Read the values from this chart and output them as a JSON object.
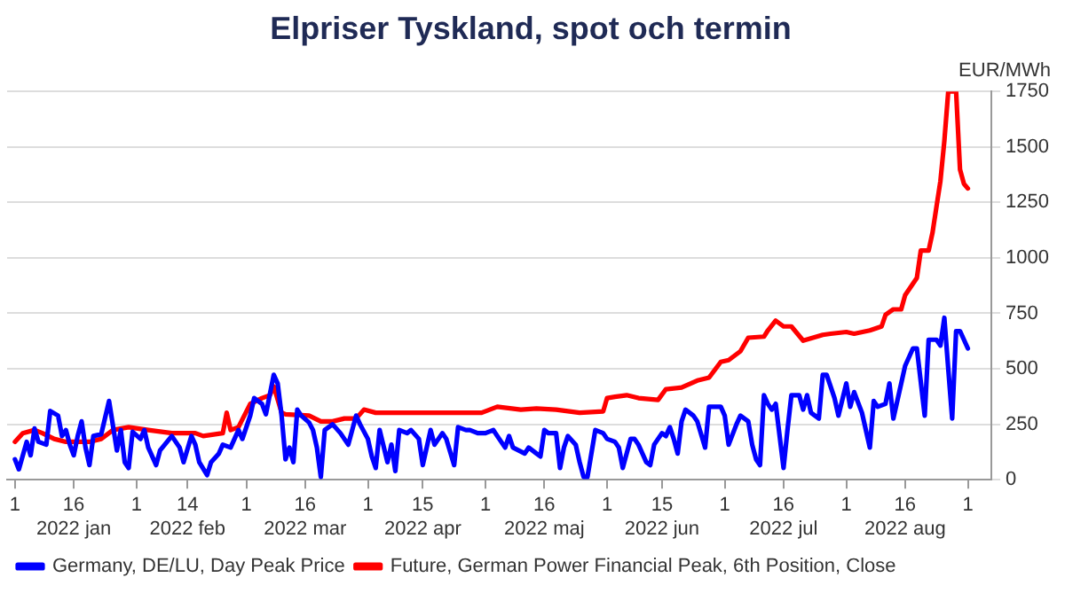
{
  "chart_data": {
    "type": "line",
    "title": "Elpriser Tyskland, spot och termin",
    "ylabel": "EUR/MWh",
    "xlim": [
      "2021-12-30",
      "2022-09-07"
    ],
    "xticks": [
      {
        "value": "2022-01-01",
        "label": "1"
      },
      {
        "value": "2022-01-16",
        "label": "16\n2022 jan"
      },
      {
        "value": "2022-02-01",
        "label": "1"
      },
      {
        "value": "2022-02-14",
        "label": "14\n2022 feb"
      },
      {
        "value": "2022-03-01",
        "label": "1"
      },
      {
        "value": "2022-03-16",
        "label": "16\n2022 mar"
      },
      {
        "value": "2022-04-01",
        "label": "1"
      },
      {
        "value": "2022-04-15",
        "label": "15\n2022 apr"
      },
      {
        "value": "2022-05-01",
        "label": "1"
      },
      {
        "value": "2022-05-16",
        "label": "16\n2022 maj"
      },
      {
        "value": "2022-06-01",
        "label": "1"
      },
      {
        "value": "2022-06-15",
        "label": "15\n2022 jun"
      },
      {
        "value": "2022-07-01",
        "label": "1"
      },
      {
        "value": "2022-07-16",
        "label": "16\n2022 jul"
      },
      {
        "value": "2022-08-01",
        "label": "1"
      },
      {
        "value": "2022-08-16",
        "label": "16\n2022 aug"
      },
      {
        "value": "2022-09-01",
        "label": "1"
      }
    ],
    "ylim": [
      0,
      1750
    ],
    "yticks": [
      0,
      250,
      500,
      750,
      1000,
      1250,
      1500,
      1750
    ],
    "grid": "y",
    "legend": "bottom",
    "marker": "none",
    "line_style": "solid",
    "series": [
      {
        "name": "Germany, DE/LU, Day Peak Price",
        "color": "#0000ff",
        "x": [
          "2022-01-01",
          "2022-01-02",
          "2022-01-04",
          "2022-01-05",
          "2022-01-06",
          "2022-01-07",
          "2022-01-09",
          "2022-01-10",
          "2022-01-12",
          "2022-01-13",
          "2022-01-14",
          "2022-01-15",
          "2022-01-16",
          "2022-01-17",
          "2022-01-18",
          "2022-01-19",
          "2022-01-20",
          "2022-01-21",
          "2022-01-23",
          "2022-01-25",
          "2022-01-27",
          "2022-01-28",
          "2022-01-29",
          "2022-01-30",
          "2022-01-31",
          "2022-02-02",
          "2022-02-03",
          "2022-02-04",
          "2022-02-06",
          "2022-02-07",
          "2022-02-10",
          "2022-02-12",
          "2022-02-13",
          "2022-02-15",
          "2022-02-16",
          "2022-02-17",
          "2022-02-19",
          "2022-02-20",
          "2022-02-22",
          "2022-02-23",
          "2022-02-25",
          "2022-02-27",
          "2022-02-28",
          "2022-03-02",
          "2022-03-03",
          "2022-03-05",
          "2022-03-06",
          "2022-03-08",
          "2022-03-09",
          "2022-03-10",
          "2022-03-11",
          "2022-03-12",
          "2022-03-13",
          "2022-03-14",
          "2022-03-15",
          "2022-03-17",
          "2022-03-18",
          "2022-03-19",
          "2022-03-20",
          "2022-03-21",
          "2022-03-23",
          "2022-03-25",
          "2022-03-27",
          "2022-03-29",
          "2022-03-30",
          "2022-04-01",
          "2022-04-02",
          "2022-04-03",
          "2022-04-04",
          "2022-04-06",
          "2022-04-07",
          "2022-04-08",
          "2022-04-09",
          "2022-04-11",
          "2022-04-12",
          "2022-04-14",
          "2022-04-15",
          "2022-04-17",
          "2022-04-18",
          "2022-04-20",
          "2022-04-21",
          "2022-04-23",
          "2022-04-24",
          "2022-04-26",
          "2022-04-27",
          "2022-04-29",
          "2022-05-01",
          "2022-05-03",
          "2022-05-04",
          "2022-05-06",
          "2022-05-07",
          "2022-05-08",
          "2022-05-11",
          "2022-05-12",
          "2022-05-14",
          "2022-05-15",
          "2022-05-16",
          "2022-05-17",
          "2022-05-19",
          "2022-05-20",
          "2022-05-21",
          "2022-05-22",
          "2022-05-24",
          "2022-05-25",
          "2022-05-26",
          "2022-05-27",
          "2022-05-29",
          "2022-05-31",
          "2022-06-01",
          "2022-06-03",
          "2022-06-04",
          "2022-06-05",
          "2022-06-07",
          "2022-06-08",
          "2022-06-09",
          "2022-06-11",
          "2022-06-12",
          "2022-06-13",
          "2022-06-15",
          "2022-06-16",
          "2022-06-17",
          "2022-06-18",
          "2022-06-19",
          "2022-06-20",
          "2022-06-21",
          "2022-06-23",
          "2022-06-24",
          "2022-06-26",
          "2022-06-27",
          "2022-06-30",
          "2022-07-01",
          "2022-07-02",
          "2022-07-04",
          "2022-07-05",
          "2022-07-07",
          "2022-07-08",
          "2022-07-09",
          "2022-07-10",
          "2022-07-11",
          "2022-07-12",
          "2022-07-13",
          "2022-07-14",
          "2022-07-16",
          "2022-07-17",
          "2022-07-18",
          "2022-07-20",
          "2022-07-21",
          "2022-07-22",
          "2022-07-23",
          "2022-07-25",
          "2022-07-26",
          "2022-07-27",
          "2022-07-29",
          "2022-07-30",
          "2022-08-01",
          "2022-08-02",
          "2022-08-03",
          "2022-08-05",
          "2022-08-07",
          "2022-08-08",
          "2022-08-09",
          "2022-08-11",
          "2022-08-12",
          "2022-08-13",
          "2022-08-15",
          "2022-08-16",
          "2022-08-18",
          "2022-08-19",
          "2022-08-21",
          "2022-08-22",
          "2022-08-24",
          "2022-08-25",
          "2022-08-26",
          "2022-08-27",
          "2022-08-28",
          "2022-08-29",
          "2022-08-30",
          "2022-09-01"
        ],
        "values": [
          92,
          47,
          171,
          110,
          231,
          171,
          158,
          310,
          289,
          197,
          224,
          158,
          110,
          197,
          263,
          145,
          66,
          197,
          205,
          355,
          132,
          224,
          79,
          53,
          216,
          184,
          224,
          145,
          66,
          132,
          197,
          145,
          79,
          197,
          158,
          79,
          21,
          79,
          118,
          158,
          145,
          224,
          184,
          289,
          368,
          342,
          295,
          473,
          434,
          289,
          92,
          145,
          79,
          316,
          289,
          258,
          224,
          145,
          13,
          224,
          250,
          210,
          158,
          289,
          250,
          184,
          105,
          53,
          224,
          79,
          158,
          39,
          224,
          210,
          224,
          184,
          66,
          224,
          158,
          210,
          184,
          66,
          237,
          224,
          224,
          210,
          210,
          224,
          197,
          145,
          197,
          145,
          118,
          145,
          118,
          105,
          224,
          210,
          210,
          53,
          145,
          197,
          158,
          79,
          13,
          13,
          224,
          210,
          184,
          171,
          145,
          53,
          184,
          184,
          158,
          79,
          66,
          158,
          210,
          197,
          237,
          184,
          118,
          263,
          316,
          289,
          263,
          145,
          329,
          329,
          289,
          158,
          250,
          289,
          263,
          158,
          92,
          66,
          381,
          342,
          316,
          342,
          53,
          224,
          381,
          381,
          316,
          381,
          302,
          276,
          473,
          473,
          368,
          289,
          434,
          329,
          395,
          302,
          145,
          355,
          329,
          342,
          434,
          276,
          434,
          513,
          592,
          592,
          289,
          631,
          631,
          605,
          730,
          500,
          276,
          670,
          670,
          592
        ]
      },
      {
        "name": "Future, German Power Financial Peak, 6th Position, Close",
        "color": "#ff0000",
        "x": [
          "2022-01-01",
          "2022-01-03",
          "2022-01-06",
          "2022-01-08",
          "2022-01-11",
          "2022-01-14",
          "2022-01-17",
          "2022-01-20",
          "2022-01-23",
          "2022-01-26",
          "2022-01-30",
          "2022-02-04",
          "2022-02-10",
          "2022-02-16",
          "2022-02-18",
          "2022-02-23",
          "2022-02-24",
          "2022-02-25",
          "2022-02-27",
          "2022-03-02",
          "2022-03-05",
          "2022-03-07",
          "2022-03-08",
          "2022-03-10",
          "2022-03-11",
          "2022-03-17",
          "2022-03-20",
          "2022-03-23",
          "2022-03-26",
          "2022-03-29",
          "2022-03-31",
          "2022-04-03",
          "2022-04-10",
          "2022-04-19",
          "2022-04-25",
          "2022-04-30",
          "2022-05-04",
          "2022-05-10",
          "2022-05-14",
          "2022-05-19",
          "2022-05-25",
          "2022-05-31",
          "2022-06-01",
          "2022-06-03",
          "2022-06-06",
          "2022-06-09",
          "2022-06-14",
          "2022-06-16",
          "2022-06-20",
          "2022-06-24",
          "2022-06-27",
          "2022-06-30",
          "2022-07-02",
          "2022-07-05",
          "2022-07-07",
          "2022-07-11",
          "2022-07-12",
          "2022-07-14",
          "2022-07-16",
          "2022-07-18",
          "2022-07-21",
          "2022-07-26",
          "2022-07-28",
          "2022-08-01",
          "2022-08-03",
          "2022-08-07",
          "2022-08-10",
          "2022-08-11",
          "2022-08-13",
          "2022-08-15",
          "2022-08-16",
          "2022-08-19",
          "2022-08-20",
          "2022-08-22",
          "2022-08-23",
          "2022-08-24",
          "2022-08-25",
          "2022-08-26",
          "2022-08-27",
          "2022-08-29",
          "2022-08-30",
          "2022-08-31",
          "2022-09-01"
        ],
        "values": [
          171,
          210,
          224,
          210,
          184,
          171,
          171,
          171,
          184,
          224,
          237,
          224,
          210,
          210,
          197,
          210,
          302,
          224,
          237,
          342,
          368,
          381,
          421,
          302,
          295,
          289,
          263,
          263,
          276,
          276,
          316,
          302,
          302,
          302,
          302,
          302,
          329,
          316,
          321,
          316,
          302,
          308,
          368,
          374,
          381,
          368,
          360,
          408,
          416,
          447,
          460,
          531,
          539,
          579,
          640,
          645,
          673,
          717,
          691,
          691,
          627,
          653,
          658,
          666,
          658,
          673,
          691,
          743,
          768,
          768,
          832,
          910,
          1033,
          1033,
          1115,
          1231,
          1346,
          1526,
          1750,
          1750,
          1398,
          1334,
          1313
        ]
      }
    ]
  }
}
